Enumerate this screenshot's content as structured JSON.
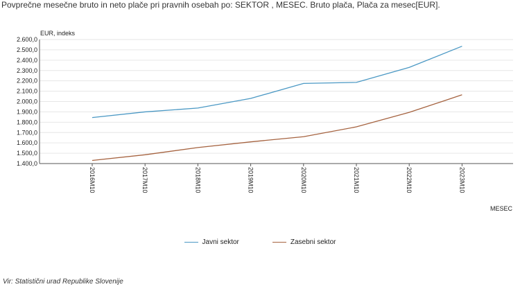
{
  "title": "Povprečne mesečne bruto in neto plače pri pravnih osebah po: SEKTOR ,  MESEC. Bruto plača, Plača za mesec[EUR].",
  "source": "Vir: Statistični urad Republike Slovenije",
  "chart_data": {
    "type": "line",
    "ylabel": "EUR, indeks",
    "xlabel": "MESEC",
    "ylim": [
      1400,
      2600
    ],
    "ytick_step": 100,
    "categories": [
      "2016M10",
      "2017M10",
      "2018M10",
      "2019M10",
      "2020M10",
      "2021M10",
      "2022M10",
      "2023M10"
    ],
    "series": [
      {
        "name": "Javni sektor",
        "color": "#4a98c4",
        "values": [
          1845,
          1900,
          1937,
          2030,
          2175,
          2185,
          2330,
          2535
        ]
      },
      {
        "name": "Zasebni sektor",
        "color": "#a5623f",
        "values": [
          1430,
          1485,
          1555,
          1610,
          1660,
          1755,
          1895,
          2065
        ]
      }
    ],
    "grid": true,
    "legend_position": "bottom"
  }
}
